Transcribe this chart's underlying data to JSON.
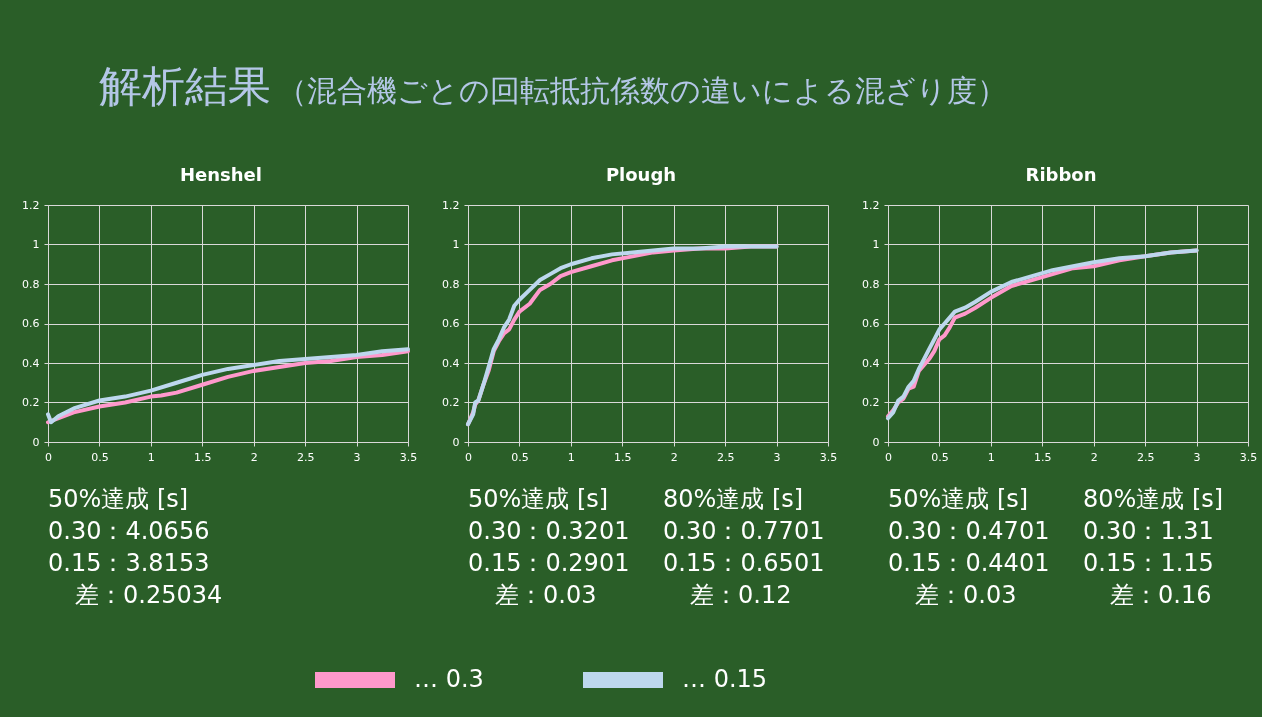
{
  "chart_data": [
    {
      "type": "other",
      "title": "解析結果",
      "subtitle": "（混合機ごとの回転抵抗係数の違いによる混ざり度）"
    },
    {
      "type": "line",
      "title": "Henshel",
      "xlim": [
        0,
        3.5
      ],
      "xticks": [
        0,
        0.5,
        1,
        1.5,
        2,
        2.5,
        3,
        3.5
      ],
      "ylim": [
        0,
        1.2
      ],
      "yticks": [
        0,
        0.2,
        0.4,
        0.6,
        0.8,
        1,
        1.2
      ],
      "grid": true,
      "legend": "bottom",
      "series": [
        {
          "name": "… 0.3",
          "color": "#ff99cc",
          "x": [
            0,
            0.25,
            0.5,
            0.75,
            1,
            1.1,
            1.25,
            1.5,
            1.75,
            2,
            2.25,
            2.5,
            2.75,
            3,
            3.25,
            3.5
          ],
          "values": [
            0.1,
            0.15,
            0.18,
            0.2,
            0.23,
            0.235,
            0.25,
            0.29,
            0.33,
            0.36,
            0.38,
            0.4,
            0.41,
            0.43,
            0.44,
            0.46
          ]
        },
        {
          "name": "… 0.15",
          "color": "#bdd7ee",
          "x": [
            0,
            0.03,
            0.1,
            0.25,
            0.5,
            0.75,
            1,
            1.25,
            1.5,
            1.75,
            2,
            2.25,
            2.5,
            2.75,
            3,
            3.25,
            3.5
          ],
          "values": [
            0.14,
            0.1,
            0.13,
            0.17,
            0.21,
            0.23,
            0.26,
            0.3,
            0.34,
            0.37,
            0.39,
            0.41,
            0.42,
            0.43,
            0.44,
            0.46,
            0.47
          ]
        }
      ],
      "annotations": [
        "50%達成 [s]",
        "0.30：4.0656",
        "0.15：3.8153",
        "差：0.25034"
      ]
    },
    {
      "type": "line",
      "title": "Plough",
      "xlim": [
        0,
        3.5
      ],
      "xticks": [
        0,
        0.5,
        1,
        1.5,
        2,
        2.5,
        3,
        3.5
      ],
      "ylim": [
        0,
        1.2
      ],
      "yticks": [
        0,
        0.2,
        0.4,
        0.6,
        0.8,
        1,
        1.2
      ],
      "grid": true,
      "legend": "bottom",
      "series": [
        {
          "name": "… 0.3",
          "color": "#ff99cc",
          "x": [
            0,
            0.05,
            0.07,
            0.1,
            0.15,
            0.2,
            0.25,
            0.3,
            0.35,
            0.4,
            0.45,
            0.5,
            0.6,
            0.7,
            0.8,
            0.9,
            1,
            1.2,
            1.4,
            1.6,
            1.8,
            2,
            2.25,
            2.5,
            2.75,
            3
          ],
          "values": [
            0.09,
            0.15,
            0.19,
            0.21,
            0.29,
            0.36,
            0.46,
            0.51,
            0.55,
            0.57,
            0.62,
            0.66,
            0.7,
            0.77,
            0.8,
            0.84,
            0.86,
            0.89,
            0.92,
            0.94,
            0.96,
            0.97,
            0.98,
            0.98,
            0.99,
            0.99
          ]
        },
        {
          "name": "… 0.15",
          "color": "#bdd7ee",
          "x": [
            0,
            0.05,
            0.07,
            0.1,
            0.15,
            0.2,
            0.25,
            0.3,
            0.35,
            0.4,
            0.45,
            0.5,
            0.6,
            0.7,
            0.8,
            0.9,
            1,
            1.2,
            1.4,
            1.6,
            1.8,
            2,
            2.25,
            2.5,
            2.75,
            3
          ],
          "values": [
            0.09,
            0.14,
            0.2,
            0.21,
            0.29,
            0.38,
            0.47,
            0.52,
            0.58,
            0.62,
            0.69,
            0.72,
            0.77,
            0.82,
            0.85,
            0.88,
            0.9,
            0.93,
            0.95,
            0.96,
            0.97,
            0.98,
            0.98,
            0.99,
            0.99,
            0.99
          ]
        }
      ],
      "annotations": [
        "50%達成 [s]",
        "0.30：0.3201",
        "0.15：0.2901",
        "差：0.03",
        "80%達成 [s]",
        "0.30：0.7701",
        "0.15：0.6501",
        "差：0.12"
      ]
    },
    {
      "type": "line",
      "title": "Ribbon",
      "xlim": [
        0,
        3.5
      ],
      "xticks": [
        0,
        0.5,
        1,
        1.5,
        2,
        2.5,
        3,
        3.5
      ],
      "ylim": [
        0,
        1.2
      ],
      "yticks": [
        0,
        0.2,
        0.4,
        0.6,
        0.8,
        1,
        1.2
      ],
      "grid": true,
      "legend": "bottom",
      "series": [
        {
          "name": "… 0.3",
          "color": "#ff99cc",
          "x": [
            0,
            0.05,
            0.1,
            0.15,
            0.2,
            0.25,
            0.3,
            0.35,
            0.4,
            0.45,
            0.5,
            0.55,
            0.6,
            0.65,
            0.75,
            0.85,
            1,
            1.2,
            1.4,
            1.6,
            1.8,
            2,
            2.25,
            2.5,
            2.75,
            3
          ],
          "values": [
            0.13,
            0.16,
            0.2,
            0.22,
            0.27,
            0.28,
            0.36,
            0.39,
            0.42,
            0.46,
            0.52,
            0.54,
            0.58,
            0.63,
            0.65,
            0.68,
            0.73,
            0.79,
            0.82,
            0.85,
            0.88,
            0.89,
            0.92,
            0.94,
            0.96,
            0.97
          ]
        },
        {
          "name": "… 0.15",
          "color": "#bdd7ee",
          "x": [
            0,
            0.05,
            0.1,
            0.15,
            0.2,
            0.25,
            0.3,
            0.35,
            0.4,
            0.45,
            0.5,
            0.55,
            0.6,
            0.65,
            0.75,
            0.85,
            1,
            1.2,
            1.4,
            1.6,
            1.8,
            2,
            2.25,
            2.5,
            2.75,
            3
          ],
          "values": [
            0.12,
            0.15,
            0.21,
            0.23,
            0.28,
            0.31,
            0.37,
            0.42,
            0.47,
            0.52,
            0.57,
            0.6,
            0.63,
            0.66,
            0.68,
            0.71,
            0.76,
            0.81,
            0.84,
            0.87,
            0.89,
            0.91,
            0.93,
            0.94,
            0.96,
            0.97
          ]
        }
      ],
      "annotations": [
        "50%達成 [s]",
        "0.30：0.4701",
        "0.15：0.4401",
        "差：0.03",
        "80%達成 [s]",
        "0.30：1.31",
        "0.15：1.15",
        "差：0.16"
      ]
    }
  ]
}
